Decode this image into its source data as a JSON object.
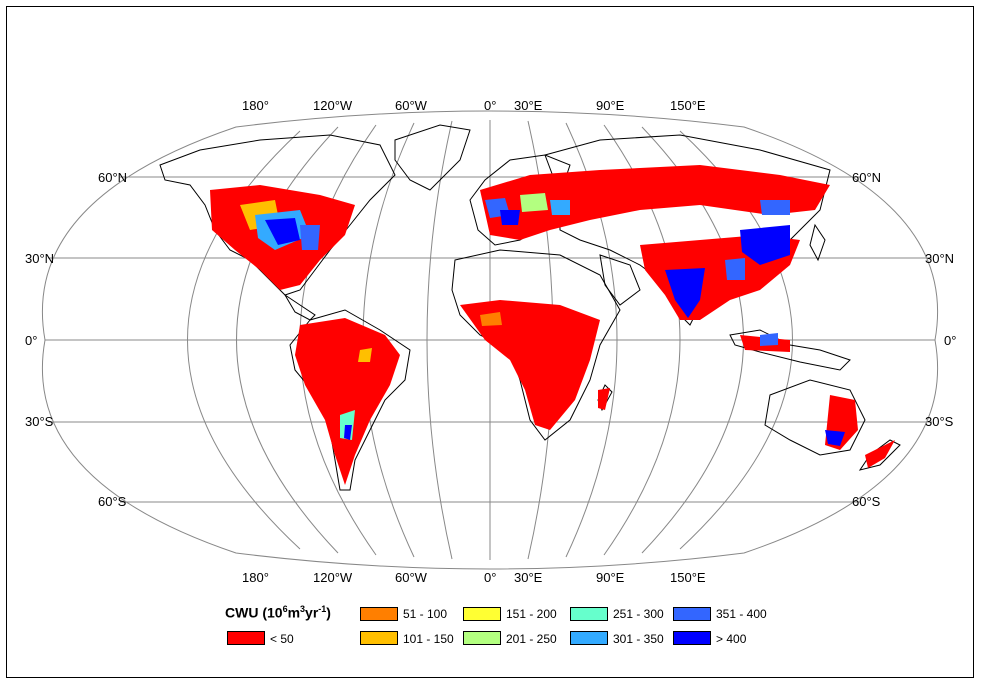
{
  "map": {
    "lon_labels_top": [
      "180°",
      "120°W",
      "60°W",
      "0°",
      "30°E",
      "90°E",
      "150°E"
    ],
    "lon_labels_bottom": [
      "180°",
      "120°W",
      "60°W",
      "0°",
      "30°E",
      "90°E",
      "150°E"
    ],
    "lat_labels_left": [
      "60°N",
      "30°N",
      "0°",
      "30°S",
      "60°S"
    ],
    "lat_labels_right": [
      "60°N",
      "30°N",
      "0°",
      "30°S",
      "60°S"
    ]
  },
  "legend": {
    "title_main": "CWU (10",
    "title_sup1": "6",
    "title_mid": "m",
    "title_sup2": "3",
    "title_end1": "yr",
    "title_sup3": "-1",
    "title_close": ")",
    "classes": [
      {
        "label": "< 50",
        "color": "#ff0000"
      },
      {
        "label": "51 - 100",
        "color": "#ff7f00"
      },
      {
        "label": "101 - 150",
        "color": "#ffbf00"
      },
      {
        "label": "151 - 200",
        "color": "#ffff33"
      },
      {
        "label": "201 - 250",
        "color": "#b3ff80"
      },
      {
        "label": "251 - 300",
        "color": "#66ffcc"
      },
      {
        "label": "301 - 350",
        "color": "#33aaff"
      },
      {
        "label": "351 - 400",
        "color": "#3366ff"
      },
      {
        "label": "> 400",
        "color": "#0000ff"
      }
    ]
  }
}
